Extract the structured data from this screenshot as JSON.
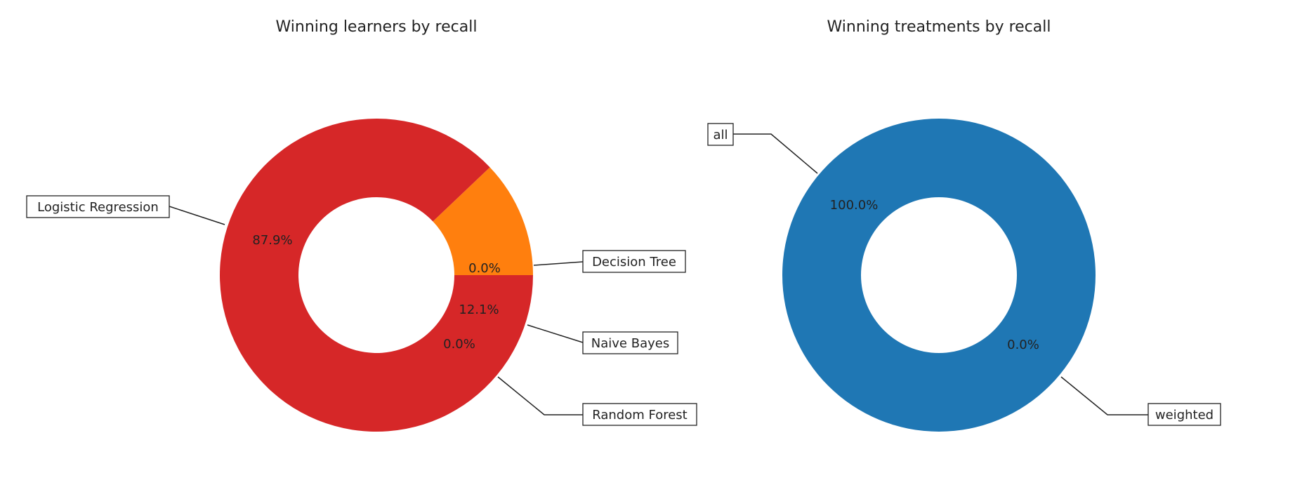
{
  "chart_data": [
    {
      "type": "pie",
      "style": "donut",
      "title": "Winning learners by recall",
      "slices": [
        {
          "label": "Decision Tree",
          "value": 0.0,
          "pct_label": "0.0%",
          "color": "#1f77b4"
        },
        {
          "label": "Naive Bayes",
          "value": 12.1,
          "pct_label": "12.1%",
          "color": "#ff7f0e"
        },
        {
          "label": "Random Forest",
          "value": 0.0,
          "pct_label": "0.0%",
          "color": "#2ca02c"
        },
        {
          "label": "Logistic Regression",
          "value": 87.9,
          "pct_label": "87.9%",
          "color": "#d62728"
        }
      ]
    },
    {
      "type": "pie",
      "style": "donut",
      "title": "Winning treatments by recall",
      "slices": [
        {
          "label": "all",
          "value": 100.0,
          "pct_label": "100.0%",
          "color": "#1f77b4"
        },
        {
          "label": "weighted",
          "value": 0.0,
          "pct_label": "0.0%",
          "color": "#ff7f0e"
        }
      ]
    }
  ]
}
